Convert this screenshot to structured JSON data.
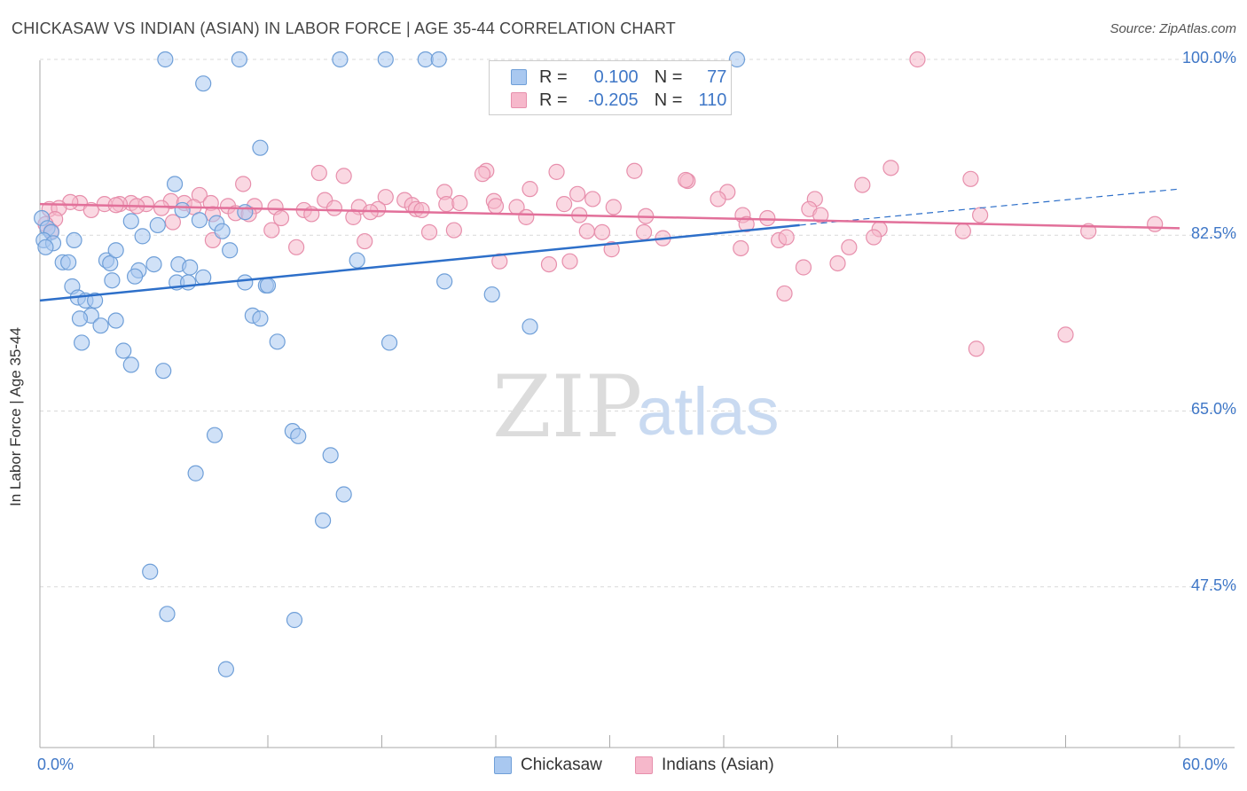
{
  "header": {
    "title": "CHICKASAW VS INDIAN (ASIAN) IN LABOR FORCE | AGE 35-44 CORRELATION CHART",
    "source": "Source: ZipAtlas.com"
  },
  "watermark": {
    "zip": "ZIP",
    "atlas": "atlas"
  },
  "legend_top": [
    {
      "r_label": "R =",
      "r_value": "0.100",
      "n_label": "N =",
      "n_value": "77"
    },
    {
      "r_label": "R =",
      "r_value": "-0.205",
      "n_label": "N =",
      "n_value": "110"
    }
  ],
  "legend_bottom": [
    "Chickasaw",
    "Indians (Asian)"
  ],
  "colors": {
    "blue_fill": "#a9c8f0",
    "blue_stroke": "#6f9fd8",
    "blue_line": "#2d6fc9",
    "pink_fill": "#f6b8cb",
    "pink_stroke": "#e78fac",
    "pink_line": "#e2709a",
    "tick_text": "#3f77c7",
    "grid": "#d9d9d9"
  },
  "chart_data": {
    "type": "scatter",
    "title": "CHICKASAW VS INDIAN (ASIAN) IN LABOR FORCE | AGE 35-44 CORRELATION CHART",
    "xlabel": "",
    "ylabel": "In Labor Force | Age 35-44",
    "xlim": [
      0,
      60
    ],
    "ylim": [
      31.5,
      101.5
    ],
    "x_tick_labels": [
      "0.0%",
      "60.0%"
    ],
    "y_ticks": [
      47.5,
      65.0,
      82.5,
      100.0
    ],
    "y_tick_labels": [
      "47.5%",
      "65.0%",
      "82.5%",
      "100.0%"
    ],
    "grid": "horizontal dashed",
    "legend_position": "top-center",
    "series": [
      {
        "name": "Chickasaw",
        "R": 0.1,
        "N": 77,
        "trend": {
          "x0": 0,
          "y0": 76.0,
          "x1": 40,
          "y1": 83.5,
          "x_dash_end": 60,
          "y_dash_end": 87.1
        },
        "points": [
          [
            6.6,
            100
          ],
          [
            10.5,
            100
          ],
          [
            15.8,
            100
          ],
          [
            18.2,
            100
          ],
          [
            20.3,
            100
          ],
          [
            21.0,
            100
          ],
          [
            36.7,
            100
          ],
          [
            8.6,
            97.6
          ],
          [
            11.6,
            91.2
          ],
          [
            7.1,
            87.6
          ],
          [
            7.5,
            85.0
          ],
          [
            10.8,
            84.8
          ],
          [
            0.1,
            84.2
          ],
          [
            0.4,
            83.2
          ],
          [
            0.6,
            82.8
          ],
          [
            0.2,
            82.0
          ],
          [
            0.7,
            81.7
          ],
          [
            0.3,
            81.3
          ],
          [
            1.8,
            82.0
          ],
          [
            4.8,
            83.9
          ],
          [
            5.4,
            82.4
          ],
          [
            6.2,
            83.5
          ],
          [
            8.4,
            84.0
          ],
          [
            9.3,
            83.7
          ],
          [
            9.6,
            82.9
          ],
          [
            10.0,
            81.0
          ],
          [
            1.2,
            79.8
          ],
          [
            1.5,
            79.8
          ],
          [
            3.5,
            80.0
          ],
          [
            3.7,
            79.7
          ],
          [
            4.0,
            81.0
          ],
          [
            5.2,
            79.0
          ],
          [
            6.0,
            79.6
          ],
          [
            7.3,
            79.6
          ],
          [
            7.9,
            79.3
          ],
          [
            3.8,
            78.0
          ],
          [
            5.0,
            78.4
          ],
          [
            7.2,
            77.8
          ],
          [
            7.8,
            77.8
          ],
          [
            8.6,
            78.3
          ],
          [
            10.8,
            77.8
          ],
          [
            11.9,
            77.5
          ],
          [
            12.0,
            77.5
          ],
          [
            16.7,
            80.0
          ],
          [
            21.3,
            77.9
          ],
          [
            23.8,
            76.6
          ],
          [
            1.7,
            77.4
          ],
          [
            2.0,
            76.3
          ],
          [
            2.4,
            76.0
          ],
          [
            2.9,
            76.0
          ],
          [
            2.7,
            74.5
          ],
          [
            2.1,
            74.2
          ],
          [
            3.2,
            73.5
          ],
          [
            4.0,
            74.0
          ],
          [
            11.2,
            74.5
          ],
          [
            11.6,
            74.2
          ],
          [
            25.8,
            73.4
          ],
          [
            2.2,
            71.8
          ],
          [
            4.4,
            71.0
          ],
          [
            4.8,
            69.6
          ],
          [
            6.5,
            69.0
          ],
          [
            12.5,
            71.9
          ],
          [
            18.4,
            71.8
          ],
          [
            9.2,
            62.6
          ],
          [
            13.3,
            63.0
          ],
          [
            13.6,
            62.5
          ],
          [
            15.3,
            60.6
          ],
          [
            8.2,
            58.8
          ],
          [
            16.0,
            56.7
          ],
          [
            14.9,
            54.1
          ],
          [
            5.8,
            49.0
          ],
          [
            6.7,
            44.8
          ],
          [
            13.4,
            44.2
          ],
          [
            9.8,
            39.3
          ]
        ]
      },
      {
        "name": "Indians (Asian)",
        "R": -0.205,
        "N": 110,
        "trend": {
          "x0": 0,
          "y0": 85.6,
          "x1": 60,
          "y1": 83.2
        },
        "points": [
          [
            46.2,
            100
          ],
          [
            44.8,
            89.2
          ],
          [
            31.3,
            88.9
          ],
          [
            23.5,
            88.9
          ],
          [
            23.3,
            88.6
          ],
          [
            27.2,
            88.8
          ],
          [
            14.7,
            88.7
          ],
          [
            16.0,
            88.4
          ],
          [
            49.0,
            88.1
          ],
          [
            34.1,
            87.9
          ],
          [
            34.0,
            88.0
          ],
          [
            43.3,
            87.5
          ],
          [
            10.7,
            87.6
          ],
          [
            25.8,
            87.1
          ],
          [
            21.3,
            86.8
          ],
          [
            36.2,
            86.8
          ],
          [
            28.3,
            86.6
          ],
          [
            8.4,
            86.5
          ],
          [
            18.2,
            86.3
          ],
          [
            19.2,
            86.0
          ],
          [
            15.0,
            86.0
          ],
          [
            29.1,
            86.1
          ],
          [
            35.7,
            86.1
          ],
          [
            40.8,
            86.1
          ],
          [
            23.9,
            85.9
          ],
          [
            6.9,
            85.9
          ],
          [
            5.6,
            85.6
          ],
          [
            4.8,
            85.7
          ],
          [
            4.2,
            85.6
          ],
          [
            3.4,
            85.6
          ],
          [
            2.1,
            85.7
          ],
          [
            1.6,
            85.8
          ],
          [
            4.0,
            85.5
          ],
          [
            5.1,
            85.4
          ],
          [
            6.4,
            85.2
          ],
          [
            7.6,
            85.7
          ],
          [
            8.1,
            85.3
          ],
          [
            9.0,
            85.7
          ],
          [
            9.9,
            85.4
          ],
          [
            11.3,
            85.4
          ],
          [
            12.4,
            85.3
          ],
          [
            13.9,
            85.0
          ],
          [
            15.5,
            85.2
          ],
          [
            16.8,
            85.3
          ],
          [
            17.8,
            85.1
          ],
          [
            19.6,
            85.5
          ],
          [
            19.8,
            85.1
          ],
          [
            21.4,
            85.6
          ],
          [
            22.1,
            85.7
          ],
          [
            24.0,
            85.4
          ],
          [
            25.1,
            85.3
          ],
          [
            27.6,
            85.6
          ],
          [
            30.2,
            85.3
          ],
          [
            40.5,
            85.1
          ],
          [
            0.5,
            85.1
          ],
          [
            1.0,
            85.2
          ],
          [
            2.7,
            85.0
          ],
          [
            0.8,
            84.1
          ],
          [
            0.3,
            83.6
          ],
          [
            0.6,
            82.9
          ],
          [
            9.1,
            84.6
          ],
          [
            10.3,
            84.7
          ],
          [
            11.0,
            84.6
          ],
          [
            12.7,
            84.2
          ],
          [
            14.3,
            84.6
          ],
          [
            16.5,
            84.3
          ],
          [
            17.4,
            84.8
          ],
          [
            20.1,
            85.0
          ],
          [
            25.6,
            84.3
          ],
          [
            28.4,
            84.5
          ],
          [
            31.9,
            84.4
          ],
          [
            37.0,
            84.5
          ],
          [
            38.3,
            84.2
          ],
          [
            41.1,
            84.5
          ],
          [
            49.5,
            84.5
          ],
          [
            7.0,
            83.8
          ],
          [
            37.2,
            83.6
          ],
          [
            44.2,
            83.1
          ],
          [
            12.2,
            83.0
          ],
          [
            20.5,
            82.8
          ],
          [
            21.8,
            83.0
          ],
          [
            28.8,
            82.9
          ],
          [
            29.6,
            82.8
          ],
          [
            31.8,
            82.8
          ],
          [
            32.8,
            82.2
          ],
          [
            38.9,
            82.0
          ],
          [
            39.3,
            82.3
          ],
          [
            43.9,
            82.3
          ],
          [
            48.6,
            82.9
          ],
          [
            55.2,
            82.9
          ],
          [
            58.7,
            83.6
          ],
          [
            9.1,
            82.0
          ],
          [
            17.1,
            81.9
          ],
          [
            13.5,
            81.3
          ],
          [
            30.1,
            81.1
          ],
          [
            36.9,
            81.2
          ],
          [
            42.6,
            81.3
          ],
          [
            24.2,
            79.9
          ],
          [
            26.8,
            79.6
          ],
          [
            27.9,
            79.9
          ],
          [
            40.2,
            79.3
          ],
          [
            42.0,
            79.7
          ],
          [
            39.2,
            76.7
          ],
          [
            49.3,
            71.2
          ],
          [
            54.0,
            72.6
          ]
        ]
      }
    ]
  }
}
